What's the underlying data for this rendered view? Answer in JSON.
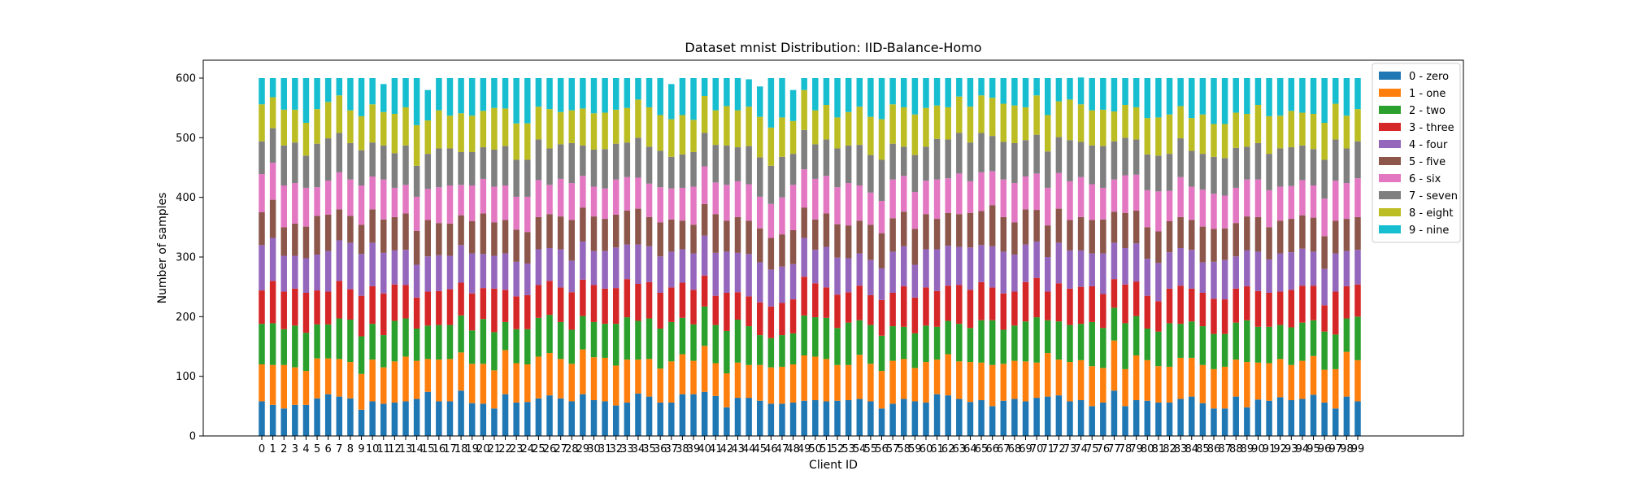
{
  "chart_data": {
    "type": "bar",
    "stacked": true,
    "title": "Dataset mnist Distribution: IID-Balance-Homo",
    "xlabel": "Client ID",
    "ylabel": "Number of samples",
    "ylim": [
      0,
      630
    ],
    "yticks": [
      0,
      100,
      200,
      300,
      400,
      500,
      600
    ],
    "legend_position": "top-right",
    "grid": false,
    "categories": [
      "0",
      "1",
      "2",
      "3",
      "4",
      "5",
      "6",
      "7",
      "8",
      "9",
      "10",
      "11",
      "12",
      "13",
      "14",
      "15",
      "16",
      "17",
      "18",
      "19",
      "20",
      "21",
      "22",
      "23",
      "24",
      "25",
      "26",
      "27",
      "28",
      "29",
      "30",
      "31",
      "32",
      "33",
      "34",
      "35",
      "36",
      "37",
      "38",
      "39",
      "40",
      "41",
      "42",
      "43",
      "44",
      "45",
      "46",
      "47",
      "48",
      "49",
      "50",
      "51",
      "52",
      "53",
      "54",
      "55",
      "56",
      "57",
      "58",
      "59",
      "60",
      "61",
      "62",
      "63",
      "64",
      "65",
      "66",
      "67",
      "68",
      "69",
      "70",
      "71",
      "72",
      "73",
      "74",
      "75",
      "76",
      "77",
      "78",
      "79",
      "80",
      "81",
      "82",
      "83",
      "84",
      "85",
      "86",
      "87",
      "88",
      "89",
      "90",
      "91",
      "92",
      "93",
      "94",
      "95",
      "96",
      "97",
      "98",
      "99"
    ],
    "series": [
      {
        "name": "0 - zero",
        "color": "#1f77b4",
        "values": [
          58,
          52,
          46,
          52,
          52,
          63,
          70,
          66,
          63,
          44,
          58,
          54,
          56,
          58,
          62,
          74,
          58,
          58,
          76,
          55,
          54,
          46,
          70,
          56,
          57,
          63,
          68,
          63,
          58,
          70,
          60,
          58,
          51,
          56,
          71,
          66,
          56,
          56,
          70,
          70,
          74,
          67,
          48,
          64,
          64,
          59,
          54,
          54,
          56,
          59,
          60,
          58,
          59,
          60,
          62,
          58,
          46,
          54,
          62,
          58,
          56,
          70,
          68,
          62,
          57,
          60,
          50,
          59,
          62,
          58,
          64,
          66,
          68,
          58,
          60,
          50,
          56,
          76,
          50,
          60,
          59,
          56,
          56,
          62,
          66,
          55,
          46,
          46,
          66,
          48,
          61,
          59,
          65,
          60,
          62,
          69,
          56,
          46,
          66,
          58
        ]
      },
      {
        "name": "1 - one",
        "color": "#ff7f0e",
        "values": [
          62,
          67,
          73,
          63,
          57,
          67,
          60,
          63,
          61,
          60,
          70,
          61,
          69,
          75,
          64,
          55,
          70,
          71,
          64,
          66,
          67,
          64,
          74,
          66,
          63,
          70,
          71,
          66,
          63,
          75,
          72,
          73,
          67,
          72,
          57,
          63,
          57,
          69,
          67,
          56,
          77,
          55,
          57,
          59,
          55,
          60,
          61,
          62,
          64,
          76,
          73,
          71,
          60,
          59,
          74,
          63,
          63,
          72,
          67,
          56,
          68,
          58,
          69,
          63,
          67,
          63,
          69,
          62,
          64,
          67,
          59,
          73,
          60,
          66,
          67,
          67,
          58,
          84,
          62,
          75,
          68,
          61,
          60,
          69,
          65,
          64,
          66,
          70,
          62,
          76,
          62,
          63,
          64,
          59,
          64,
          65,
          55,
          66,
          75,
          69
        ]
      },
      {
        "name": "2 - two",
        "color": "#2ca02c",
        "values": [
          68,
          70,
          60,
          70,
          64,
          57,
          57,
          68,
          71,
          63,
          60,
          54,
          68,
          64,
          54,
          56,
          58,
          57,
          62,
          56,
          75,
          64,
          47,
          57,
          59,
          65,
          64,
          62,
          57,
          56,
          59,
          57,
          70,
          71,
          65,
          68,
          67,
          66,
          61,
          61,
          66,
          64,
          71,
          72,
          65,
          50,
          49,
          53,
          52,
          67,
          66,
          69,
          62,
          71,
          58,
          65,
          59,
          58,
          54,
          58,
          61,
          55,
          56,
          63,
          57,
          71,
          75,
          57,
          59,
          67,
          76,
          55,
          64,
          62,
          61,
          74,
          67,
          55,
          77,
          66,
          53,
          58,
          73,
          57,
          61,
          65,
          59,
          55,
          62,
          70,
          60,
          61,
          57,
          63,
          64,
          60,
          64,
          58,
          56,
          73
        ]
      },
      {
        "name": "3 - three",
        "color": "#d62728",
        "values": [
          56,
          71,
          63,
          62,
          67,
          57,
          55,
          63,
          51,
          68,
          63,
          70,
          61,
          56,
          52,
          57,
          57,
          60,
          55,
          62,
          52,
          73,
          54,
          55,
          57,
          55,
          57,
          58,
          63,
          61,
          62,
          59,
          60,
          64,
          62,
          61,
          60,
          58,
          59,
          58,
          52,
          49,
          64,
          46,
          50,
          55,
          53,
          54,
          57,
          65,
          57,
          51,
          56,
          51,
          58,
          50,
          60,
          56,
          68,
          60,
          64,
          60,
          59,
          65,
          64,
          64,
          55,
          61,
          57,
          66,
          66,
          48,
          64,
          61,
          62,
          60,
          57,
          48,
          65,
          58,
          55,
          51,
          58,
          64,
          55,
          56,
          59,
          58,
          57,
          57,
          60,
          57,
          56,
          63,
          62,
          58,
          44,
          72,
          54,
          54
        ]
      },
      {
        "name": "4 - four",
        "color": "#9467bd",
        "values": [
          76,
          72,
          60,
          55,
          58,
          60,
          68,
          68,
          78,
          70,
          73,
          68,
          57,
          59,
          55,
          59,
          60,
          56,
          63,
          67,
          57,
          55,
          61,
          58,
          53,
          60,
          55,
          64,
          53,
          64,
          57,
          63,
          68,
          58,
          66,
          60,
          61,
          60,
          56,
          61,
          67,
          72,
          69,
          66,
          71,
          67,
          62,
          61,
          59,
          65,
          56,
          68,
          62,
          57,
          54,
          59,
          53,
          69,
          67,
          55,
          64,
          70,
          67,
          64,
          71,
          62,
          69,
          70,
          62,
          63,
          61,
          58,
          68,
          64,
          61,
          55,
          68,
          61,
          61,
          64,
          62,
          64,
          61,
          63,
          65,
          51,
          62,
          66,
          54,
          60,
          66,
          56,
          64,
          63,
          62,
          57,
          61,
          64,
          59,
          58
        ]
      },
      {
        "name": "5 - five",
        "color": "#8c564b",
        "values": [
          55,
          64,
          48,
          54,
          53,
          65,
          61,
          52,
          45,
          49,
          56,
          56,
          56,
          61,
          57,
          61,
          54,
          54,
          50,
          54,
          68,
          56,
          56,
          54,
          53,
          54,
          57,
          55,
          68,
          57,
          58,
          54,
          55,
          57,
          60,
          49,
          57,
          54,
          48,
          48,
          53,
          65,
          52,
          60,
          56,
          57,
          53,
          54,
          57,
          51,
          51,
          56,
          56,
          55,
          55,
          59,
          59,
          56,
          58,
          60,
          59,
          51,
          55,
          55,
          58,
          57,
          69,
          58,
          54,
          59,
          53,
          53,
          57,
          51,
          56,
          56,
          57,
          52,
          59,
          55,
          53,
          53,
          52,
          52,
          50,
          60,
          55,
          53,
          56,
          57,
          58,
          54,
          55,
          56,
          56,
          57,
          55,
          55,
          54,
          55
        ]
      },
      {
        "name": "6 - six",
        "color": "#e377c2",
        "values": [
          64,
          62,
          70,
          68,
          65,
          48,
          57,
          62,
          61,
          66,
          55,
          67,
          49,
          48,
          57,
          52,
          60,
          64,
          51,
          60,
          58,
          60,
          58,
          55,
          59,
          62,
          49,
          63,
          62,
          53,
          50,
          51,
          59,
          56,
          52,
          56,
          59,
          52,
          55,
          64,
          63,
          53,
          60,
          60,
          61,
          53,
          57,
          62,
          76,
          64,
          68,
          63,
          62,
          71,
          59,
          54,
          54,
          65,
          60,
          62,
          56,
          66,
          58,
          68,
          53,
          65,
          57,
          63,
          66,
          55,
          61,
          63,
          60,
          65,
          67,
          60,
          53,
          54,
          63,
          60,
          62,
          67,
          51,
          67,
          56,
          62,
          59,
          55,
          59,
          62,
          63,
          62,
          57,
          55,
          59,
          54,
          63,
          67,
          60,
          65
        ]
      },
      {
        "name": "7 - seven",
        "color": "#7f7f7f",
        "values": [
          55,
          58,
          67,
          68,
          54,
          73,
          71,
          66,
          61,
          59,
          57,
          57,
          58,
          66,
          52,
          59,
          65,
          62,
          55,
          56,
          53,
          62,
          66,
          62,
          62,
          68,
          61,
          58,
          67,
          51,
          62,
          66,
          60,
          58,
          67,
          62,
          61,
          53,
          56,
          58,
          56,
          63,
          66,
          57,
          64,
          66,
          64,
          68,
          52,
          66,
          58,
          61,
          65,
          63,
          68,
          63,
          69,
          60,
          49,
          62,
          57,
          68,
          65,
          68,
          65,
          66,
          59,
          63,
          67,
          61,
          65,
          61,
          60,
          69,
          59,
          65,
          70,
          64,
          63,
          59,
          60,
          60,
          62,
          65,
          60,
          60,
          62,
          63,
          67,
          55,
          61,
          61,
          64,
          65,
          58,
          61,
          65,
          69,
          58,
          62
        ]
      },
      {
        "name": "8 - eight",
        "color": "#bcbd22",
        "values": [
          62,
          52,
          60,
          55,
          55,
          58,
          61,
          63,
          55,
          57,
          64,
          56,
          66,
          64,
          68,
          56,
          64,
          55,
          65,
          61,
          61,
          70,
          63,
          61,
          61,
          55,
          66,
          54,
          55,
          62,
          61,
          61,
          57,
          58,
          64,
          66,
          60,
          63,
          66,
          54,
          62,
          58,
          66,
          62,
          66,
          68,
          64,
          66,
          55,
          67,
          57,
          58,
          52,
          56,
          64,
          64,
          68,
          66,
          66,
          68,
          65,
          56,
          54,
          61,
          60,
          63,
          64,
          64,
          63,
          55,
          66,
          61,
          60,
          68,
          63,
          59,
          61,
          50,
          55,
          54,
          61,
          64,
          66,
          54,
          55,
          66,
          55,
          57,
          59,
          55,
          64,
          63,
          55,
          61,
          55,
          59,
          62,
          60,
          55,
          54
        ]
      },
      {
        "name": "9 - nine",
        "color": "#17becf",
        "values": [
          44,
          32,
          53,
          53,
          75,
          52,
          40,
          29,
          54,
          64,
          44,
          47,
          60,
          49,
          79,
          51,
          54,
          63,
          59,
          63,
          55,
          50,
          51,
          76,
          76,
          48,
          52,
          57,
          54,
          51,
          59,
          58,
          53,
          50,
          36,
          49,
          62,
          59,
          62,
          70,
          30,
          54,
          47,
          54,
          46,
          51,
          83,
          66,
          52,
          20,
          54,
          45,
          66,
          57,
          48,
          65,
          69,
          44,
          49,
          61,
          50,
          46,
          49,
          31,
          48,
          29,
          33,
          43,
          46,
          49,
          29,
          62,
          39,
          36,
          45,
          54,
          53,
          56,
          45,
          49,
          67,
          66,
          61,
          47,
          67,
          61,
          77,
          77,
          58,
          60,
          45,
          64,
          63,
          55,
          58,
          60,
          75,
          43,
          63,
          52
        ]
      }
    ]
  }
}
